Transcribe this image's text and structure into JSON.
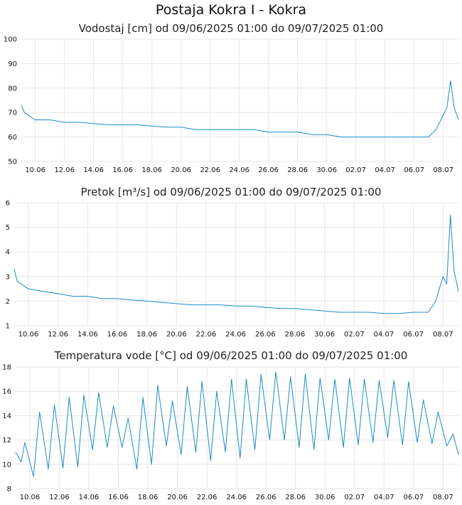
{
  "page": {
    "title": "Postaja Kokra I - Kokra"
  },
  "colors": {
    "line": "#1a8bc9",
    "grid": "#e6e6e6",
    "plot_bg": "#ffffff"
  },
  "chart_data": [
    {
      "type": "line",
      "title": "Vodostaj [cm] od 09/06/2025 01:00 do 09/07/2025 01:00",
      "xlabel": "",
      "ylabel": "",
      "ylim": [
        50,
        100
      ],
      "yticks": [
        50,
        60,
        70,
        80,
        90,
        100
      ],
      "xlim": [
        "2025-06-09T01:00",
        "2025-07-09T01:00"
      ],
      "xticks": [
        "10.06",
        "12.06",
        "14.06",
        "16.06",
        "18.06",
        "20.06",
        "22.06",
        "24.06",
        "26.06",
        "28.06",
        "30.06",
        "02.07",
        "04.07",
        "06.07",
        "08.07"
      ],
      "grid": true,
      "series": [
        {
          "x": [
            "2025-06-09T01:00",
            "2025-06-09T06:00",
            "2025-06-10T00:00",
            "2025-06-11T00:00",
            "2025-06-12T00:00",
            "2025-06-13T00:00",
            "2025-06-14T00:00",
            "2025-06-15T00:00",
            "2025-06-16T00:00",
            "2025-06-17T00:00",
            "2025-06-18T00:00",
            "2025-06-19T00:00",
            "2025-06-20T00:00",
            "2025-06-21T00:00",
            "2025-06-22T00:00",
            "2025-06-23T00:00",
            "2025-06-24T00:00",
            "2025-06-25T00:00",
            "2025-06-26T00:00",
            "2025-06-27T00:00",
            "2025-06-28T00:00",
            "2025-06-29T00:00",
            "2025-06-30T00:00",
            "2025-07-01T00:00",
            "2025-07-02T00:00",
            "2025-07-03T00:00",
            "2025-07-04T00:00",
            "2025-07-05T00:00",
            "2025-07-06T00:00",
            "2025-07-07T00:00",
            "2025-07-07T12:00",
            "2025-07-08T00:00",
            "2025-07-08T06:00",
            "2025-07-08T12:00",
            "2025-07-08T18:00",
            "2025-07-09T01:00"
          ],
          "y": [
            73,
            70,
            67,
            67,
            66,
            66,
            65.5,
            65,
            65,
            65,
            64.5,
            64,
            64,
            63,
            63,
            63,
            63,
            63,
            62,
            62,
            62,
            61,
            61,
            60,
            60,
            60,
            60,
            60,
            60,
            60,
            63,
            69,
            72,
            83,
            72,
            67
          ]
        }
      ]
    },
    {
      "type": "line",
      "title": "Pretok [m³/s] od 09/06/2025 01:00 do 09/07/2025 01:00",
      "xlabel": "",
      "ylabel": "",
      "ylim": [
        1,
        6
      ],
      "yticks": [
        1,
        2,
        3,
        4,
        5,
        6
      ],
      "xlim": [
        "2025-06-09T01:00",
        "2025-07-09T01:00"
      ],
      "xticks": [
        "10.06",
        "12.06",
        "14.06",
        "16.06",
        "18.06",
        "20.06",
        "22.06",
        "24.06",
        "26.06",
        "28.06",
        "30.06",
        "02.07",
        "04.07",
        "06.07",
        "08.07"
      ],
      "grid": true,
      "series": [
        {
          "x": [
            "2025-06-09T01:00",
            "2025-06-09T06:00",
            "2025-06-10T00:00",
            "2025-06-11T00:00",
            "2025-06-12T00:00",
            "2025-06-13T00:00",
            "2025-06-14T00:00",
            "2025-06-15T00:00",
            "2025-06-16T00:00",
            "2025-06-17T00:00",
            "2025-06-18T00:00",
            "2025-06-19T00:00",
            "2025-06-20T00:00",
            "2025-06-21T00:00",
            "2025-06-22T00:00",
            "2025-06-23T00:00",
            "2025-06-24T00:00",
            "2025-06-25T00:00",
            "2025-06-26T00:00",
            "2025-06-27T00:00",
            "2025-06-28T00:00",
            "2025-06-29T00:00",
            "2025-06-30T00:00",
            "2025-07-01T00:00",
            "2025-07-02T00:00",
            "2025-07-03T00:00",
            "2025-07-04T00:00",
            "2025-07-05T00:00",
            "2025-07-06T00:00",
            "2025-07-07T00:00",
            "2025-07-07T12:00",
            "2025-07-08T00:00",
            "2025-07-08T06:00",
            "2025-07-08T12:00",
            "2025-07-08T18:00",
            "2025-07-09T01:00"
          ],
          "y": [
            3.3,
            2.8,
            2.5,
            2.4,
            2.3,
            2.2,
            2.2,
            2.1,
            2.1,
            2.05,
            2.0,
            1.95,
            1.9,
            1.85,
            1.85,
            1.85,
            1.8,
            1.8,
            1.75,
            1.7,
            1.7,
            1.65,
            1.6,
            1.55,
            1.55,
            1.55,
            1.5,
            1.5,
            1.55,
            1.55,
            2.0,
            3.0,
            2.7,
            5.5,
            3.2,
            2.4
          ]
        }
      ]
    },
    {
      "type": "line",
      "title": "Temperatura vode [°C] od 09/06/2025 01:00 do 09/07/2025 01:00",
      "xlabel": "",
      "ylabel": "",
      "ylim": [
        8,
        18
      ],
      "yticks": [
        8,
        10,
        12,
        14,
        16,
        18
      ],
      "xlim": [
        "2025-06-09T01:00",
        "2025-07-09T01:00"
      ],
      "xticks": [
        "10.06",
        "12.06",
        "14.06",
        "16.06",
        "18.06",
        "20.06",
        "22.06",
        "24.06",
        "26.06",
        "28.06",
        "30.06",
        "02.07",
        "04.07",
        "06.07",
        "08.07"
      ],
      "grid": true,
      "series": [
        {
          "x": [
            "2025-06-09T01:00",
            "2025-06-09T10:00",
            "2025-06-09T16:00",
            "2025-06-10T06:00",
            "2025-06-10T16:00",
            "2025-06-11T06:00",
            "2025-06-11T16:00",
            "2025-06-12T06:00",
            "2025-06-12T16:00",
            "2025-06-13T06:00",
            "2025-06-13T16:00",
            "2025-06-14T06:00",
            "2025-06-14T16:00",
            "2025-06-15T06:00",
            "2025-06-15T16:00",
            "2025-06-16T06:00",
            "2025-06-16T16:00",
            "2025-06-17T06:00",
            "2025-06-17T16:00",
            "2025-06-18T06:00",
            "2025-06-18T16:00",
            "2025-06-19T06:00",
            "2025-06-19T16:00",
            "2025-06-20T06:00",
            "2025-06-20T16:00",
            "2025-06-21T06:00",
            "2025-06-21T16:00",
            "2025-06-22T06:00",
            "2025-06-22T16:00",
            "2025-06-23T06:00",
            "2025-06-23T16:00",
            "2025-06-24T06:00",
            "2025-06-24T16:00",
            "2025-06-25T06:00",
            "2025-06-25T16:00",
            "2025-06-26T06:00",
            "2025-06-26T16:00",
            "2025-06-27T06:00",
            "2025-06-27T16:00",
            "2025-06-28T06:00",
            "2025-06-28T16:00",
            "2025-06-29T06:00",
            "2025-06-29T16:00",
            "2025-06-30T06:00",
            "2025-06-30T16:00",
            "2025-07-01T06:00",
            "2025-07-01T16:00",
            "2025-07-02T06:00",
            "2025-07-02T16:00",
            "2025-07-03T06:00",
            "2025-07-03T16:00",
            "2025-07-04T06:00",
            "2025-07-04T16:00",
            "2025-07-05T06:00",
            "2025-07-05T16:00",
            "2025-07-06T06:00",
            "2025-07-06T16:00",
            "2025-07-07T06:00",
            "2025-07-07T16:00",
            "2025-07-08T06:00",
            "2025-07-08T16:00",
            "2025-07-09T01:00"
          ],
          "y": [
            11,
            10.2,
            11.8,
            9.0,
            14.3,
            9.6,
            14.9,
            9.7,
            15.5,
            9.8,
            15.7,
            11.2,
            15.9,
            11.4,
            14.8,
            11.4,
            13.8,
            9.6,
            15.5,
            10.0,
            16.5,
            11.5,
            15.2,
            10.8,
            16.4,
            11.0,
            16.8,
            10.3,
            16.0,
            11.0,
            17.0,
            10.5,
            17.0,
            11.2,
            17.4,
            12.0,
            17.6,
            12.0,
            17.2,
            11.4,
            17.4,
            11.2,
            17.1,
            12.0,
            17.0,
            11.4,
            17.1,
            11.6,
            17.0,
            11.8,
            16.9,
            12.2,
            16.9,
            11.6,
            16.8,
            11.8,
            15.3,
            11.7,
            14.3,
            11.5,
            12.5,
            10.8
          ]
        }
      ]
    }
  ]
}
